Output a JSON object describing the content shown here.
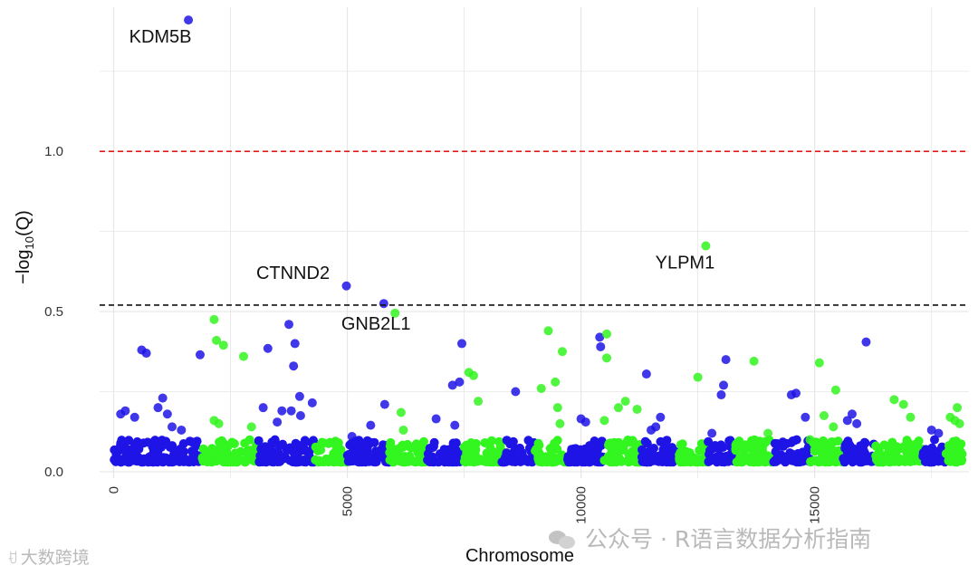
{
  "chart_data": {
    "type": "scatter",
    "title": "",
    "xlabel": "Chromosome",
    "ylabel": "−log10(Q)",
    "ylabel_parts": {
      "prefix": "−log",
      "sub": "10",
      "suffix": "(Q)"
    },
    "xlim": [
      -300,
      18300
    ],
    "ylim": [
      -0.02,
      1.45
    ],
    "x_ticks": [
      0,
      5000,
      10000,
      15000
    ],
    "x_tick_labels": [
      "0",
      "5000",
      "10000",
      "15000"
    ],
    "x_tick_rotation": -90,
    "y_ticks": [
      0.0,
      0.5,
      1.0
    ],
    "y_tick_labels": [
      "0.0",
      "0.5",
      "1.0"
    ],
    "grid": true,
    "legend": "none",
    "colors": {
      "chr_odd": "#1f14e6",
      "chr_even": "#33f51f",
      "significance_line": "#e01b1b",
      "suggestive_line": "#111111",
      "grid": "#e6e6e6"
    },
    "thresholds": [
      {
        "y": 1.0,
        "style": "dashed",
        "color": "#e01b1b"
      },
      {
        "y": 0.52,
        "style": "dashed",
        "color": "#111111"
      }
    ],
    "chromosome_boundaries": [
      0,
      1900,
      3100,
      4300,
      5000,
      5900,
      6700,
      7500,
      8300,
      9000,
      9700,
      10500,
      11300,
      12100,
      12700,
      13300,
      14100,
      14900,
      15600,
      16300,
      17300,
      17800,
      18200
    ],
    "series": [
      {
        "name": "highlighted",
        "points": [
          {
            "x": 1600,
            "y": 1.41,
            "label": "KDM5B",
            "color": "#1f14e6"
          },
          {
            "x": 4980,
            "y": 0.58,
            "label": "CTNND2",
            "color": "#1f14e6"
          },
          {
            "x": 5780,
            "y": 0.525,
            "label": "",
            "color": "#1f14e6"
          },
          {
            "x": 6020,
            "y": 0.495,
            "label": "GNB2L1",
            "color": "#33f51f"
          },
          {
            "x": 12670,
            "y": 0.705,
            "label": "YLPM1",
            "color": "#33f51f"
          }
        ]
      },
      {
        "name": "chromosome points",
        "points": [
          {
            "x": 150,
            "y": 0.18
          },
          {
            "x": 250,
            "y": 0.19
          },
          {
            "x": 450,
            "y": 0.17
          },
          {
            "x": 600,
            "y": 0.38
          },
          {
            "x": 700,
            "y": 0.37
          },
          {
            "x": 950,
            "y": 0.2
          },
          {
            "x": 1050,
            "y": 0.23
          },
          {
            "x": 1150,
            "y": 0.18
          },
          {
            "x": 1250,
            "y": 0.14
          },
          {
            "x": 1450,
            "y": 0.13
          },
          {
            "x": 1850,
            "y": 0.365
          },
          {
            "x": 2150,
            "y": 0.475
          },
          {
            "x": 2200,
            "y": 0.41
          },
          {
            "x": 2350,
            "y": 0.395
          },
          {
            "x": 2150,
            "y": 0.16
          },
          {
            "x": 2250,
            "y": 0.15
          },
          {
            "x": 2780,
            "y": 0.36
          },
          {
            "x": 2950,
            "y": 0.14
          },
          {
            "x": 3200,
            "y": 0.2
          },
          {
            "x": 3300,
            "y": 0.385
          },
          {
            "x": 3500,
            "y": 0.155
          },
          {
            "x": 3600,
            "y": 0.19
          },
          {
            "x": 3750,
            "y": 0.46
          },
          {
            "x": 3800,
            "y": 0.19
          },
          {
            "x": 3850,
            "y": 0.33
          },
          {
            "x": 3880,
            "y": 0.4
          },
          {
            "x": 3980,
            "y": 0.235
          },
          {
            "x": 4000,
            "y": 0.175
          },
          {
            "x": 4250,
            "y": 0.215
          },
          {
            "x": 5100,
            "y": 0.11
          },
          {
            "x": 5500,
            "y": 0.145
          },
          {
            "x": 5800,
            "y": 0.21
          },
          {
            "x": 6150,
            "y": 0.185
          },
          {
            "x": 6200,
            "y": 0.13
          },
          {
            "x": 6900,
            "y": 0.165
          },
          {
            "x": 7300,
            "y": 0.145
          },
          {
            "x": 7250,
            "y": 0.27
          },
          {
            "x": 7400,
            "y": 0.28
          },
          {
            "x": 7450,
            "y": 0.4
          },
          {
            "x": 7600,
            "y": 0.31
          },
          {
            "x": 7700,
            "y": 0.3
          },
          {
            "x": 7800,
            "y": 0.22
          },
          {
            "x": 8600,
            "y": 0.25
          },
          {
            "x": 9150,
            "y": 0.26
          },
          {
            "x": 9300,
            "y": 0.44
          },
          {
            "x": 9450,
            "y": 0.28
          },
          {
            "x": 9500,
            "y": 0.2
          },
          {
            "x": 9550,
            "y": 0.15
          },
          {
            "x": 9600,
            "y": 0.375
          },
          {
            "x": 10000,
            "y": 0.165
          },
          {
            "x": 10100,
            "y": 0.155
          },
          {
            "x": 10400,
            "y": 0.42
          },
          {
            "x": 10420,
            "y": 0.39
          },
          {
            "x": 10550,
            "y": 0.43
          },
          {
            "x": 10550,
            "y": 0.355
          },
          {
            "x": 10500,
            "y": 0.16
          },
          {
            "x": 10800,
            "y": 0.2
          },
          {
            "x": 10950,
            "y": 0.22
          },
          {
            "x": 11200,
            "y": 0.195
          },
          {
            "x": 11400,
            "y": 0.305
          },
          {
            "x": 11500,
            "y": 0.13
          },
          {
            "x": 11700,
            "y": 0.17
          },
          {
            "x": 11600,
            "y": 0.14
          },
          {
            "x": 12500,
            "y": 0.295
          },
          {
            "x": 12800,
            "y": 0.12
          },
          {
            "x": 13100,
            "y": 0.35
          },
          {
            "x": 13050,
            "y": 0.27
          },
          {
            "x": 13000,
            "y": 0.24
          },
          {
            "x": 13700,
            "y": 0.345
          },
          {
            "x": 14000,
            "y": 0.12
          },
          {
            "x": 14500,
            "y": 0.24
          },
          {
            "x": 14600,
            "y": 0.245
          },
          {
            "x": 14800,
            "y": 0.17
          },
          {
            "x": 14900,
            "y": 0.1
          },
          {
            "x": 15100,
            "y": 0.34
          },
          {
            "x": 15200,
            "y": 0.175
          },
          {
            "x": 15450,
            "y": 0.255
          },
          {
            "x": 15400,
            "y": 0.14
          },
          {
            "x": 15700,
            "y": 0.16
          },
          {
            "x": 15800,
            "y": 0.18
          },
          {
            "x": 15900,
            "y": 0.15
          },
          {
            "x": 16100,
            "y": 0.405
          },
          {
            "x": 16700,
            "y": 0.225
          },
          {
            "x": 16900,
            "y": 0.21
          },
          {
            "x": 17050,
            "y": 0.17
          },
          {
            "x": 17500,
            "y": 0.13
          },
          {
            "x": 17650,
            "y": 0.12
          },
          {
            "x": 17900,
            "y": 0.17
          },
          {
            "x": 18050,
            "y": 0.2
          },
          {
            "x": 18000,
            "y": 0.16
          },
          {
            "x": 18100,
            "y": 0.15
          }
        ]
      }
    ]
  },
  "watermark": {
    "left_text": "大数跨境",
    "right_text": "公众号 · R语言数据分析指南"
  }
}
